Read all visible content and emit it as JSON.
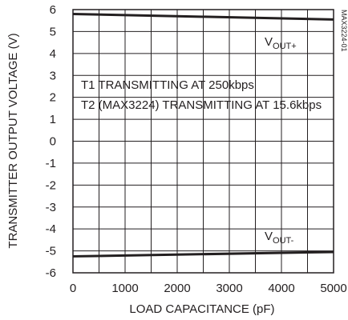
{
  "chart_data": {
    "type": "line",
    "xlabel": "LOAD CAPACITANCE (pF)",
    "ylabel": "TRANSMITTER OUTPUT VOLTAGE (V)",
    "xlim": [
      0,
      5000
    ],
    "ylim": [
      -6,
      6
    ],
    "x_ticks": [
      "0",
      "1000",
      "2000",
      "3000",
      "4000",
      "5000"
    ],
    "y_ticks": [
      "6",
      "5",
      "4",
      "3",
      "2",
      "1",
      "0",
      "-1",
      "-2",
      "-3",
      "-4",
      "-5",
      "-6"
    ],
    "grid": true,
    "series": [
      {
        "name_main": "V",
        "name_sub": "OUT+",
        "x": [
          0,
          5000
        ],
        "y": [
          5.8,
          5.55
        ]
      },
      {
        "name_main": "V",
        "name_sub": "OUT-",
        "x": [
          0,
          5000
        ],
        "y": [
          -5.25,
          -5.05
        ]
      }
    ],
    "annotations": [
      "T1 TRANSMITTING AT 250kbps",
      "T2 (MAX3224) TRANSMITTING AT 15.6kbps"
    ],
    "figure_code": "MAX3224-01"
  }
}
